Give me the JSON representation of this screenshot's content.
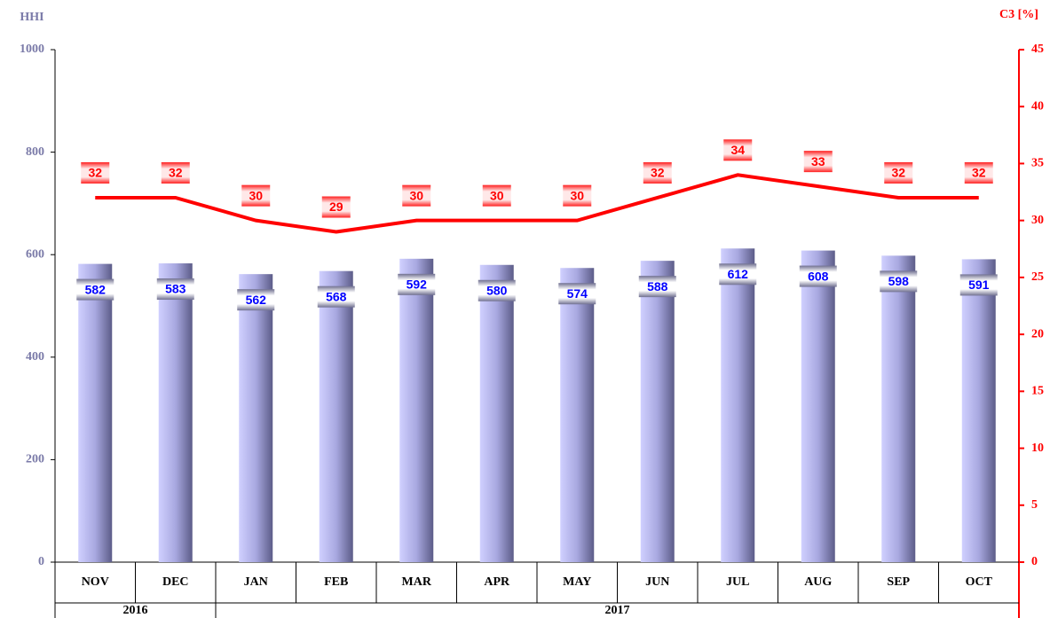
{
  "chart_data": {
    "type": "bar_line",
    "y_axis_title": "HHI",
    "y2_axis_title": "C3 [%]",
    "categories": [
      "NOV",
      "DEC",
      "JAN",
      "FEB",
      "MAR",
      "APR",
      "MAY",
      "JUN",
      "JUL",
      "AUG",
      "SEP",
      "OCT"
    ],
    "years": [
      {
        "name": "2016",
        "count": 2
      },
      {
        "name": "2017",
        "count": 10
      }
    ],
    "series": [
      {
        "name": "HHI",
        "type": "bar",
        "color": "#b4b4ee",
        "values": [
          582,
          583,
          562,
          568,
          592,
          580,
          574,
          588,
          612,
          608,
          598,
          591
        ]
      },
      {
        "name": "C3",
        "type": "line",
        "axis": "y2",
        "color": "#ff0000",
        "values": [
          32,
          32,
          30,
          29,
          30,
          30,
          30,
          32,
          34,
          33,
          32,
          32
        ]
      }
    ],
    "ylim": [
      0,
      1000
    ],
    "yticks": [
      0,
      200,
      400,
      600,
      800,
      1000
    ],
    "y2lim": [
      0,
      45
    ],
    "y2ticks": [
      0,
      5,
      10,
      15,
      20,
      25,
      30,
      35,
      40,
      45
    ]
  }
}
